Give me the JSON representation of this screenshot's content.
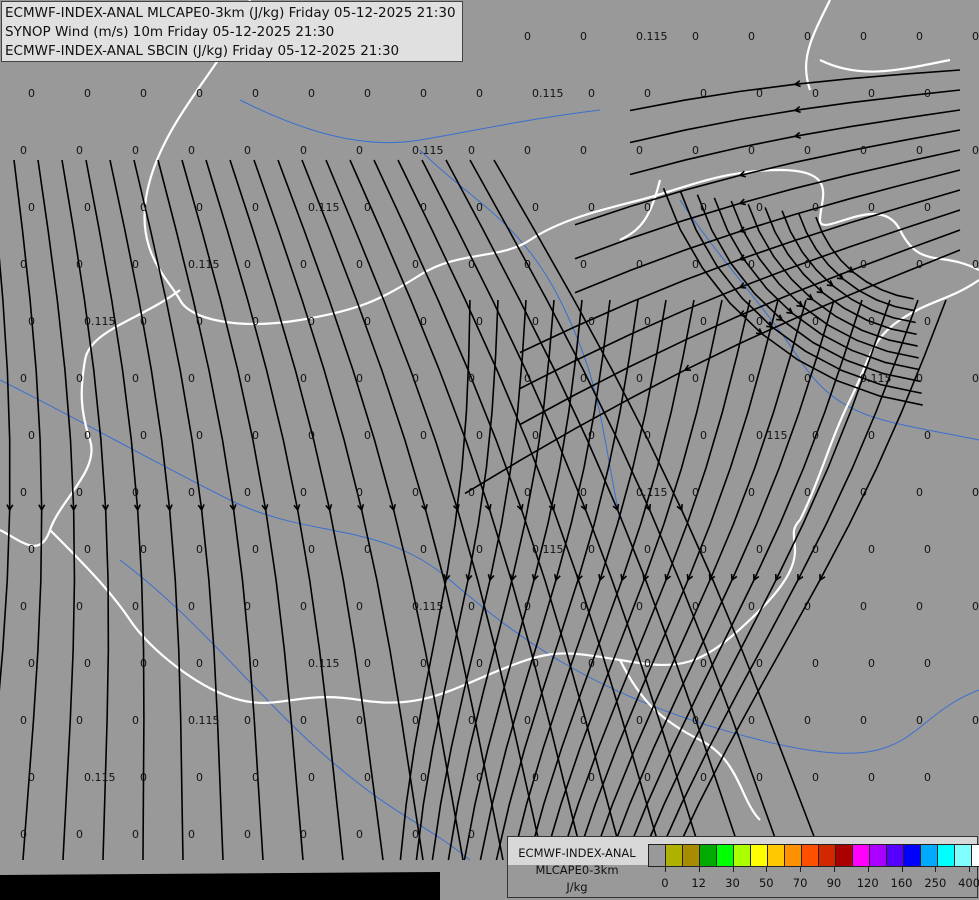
{
  "header": {
    "lines": [
      "ECMWF-INDEX-ANAL MLCAPE0-3km (J/kg) Friday 05-12-2025 21:30",
      "SYNOP Wind (m/s) 10m Friday 05-12-2025 21:30",
      "ECMWF-INDEX-ANAL SBCIN (J/kg) Friday 05-12-2025 21:30"
    ]
  },
  "map": {
    "background": "#999999",
    "border_color": "#ffffff",
    "river_color": "#3a6fd0",
    "streamline_color": "#000000",
    "cin_values": [
      "0",
      "0",
      "0.115",
      "0",
      "0",
      "0",
      "0",
      "0",
      "0",
      "0",
      "0",
      "0",
      "0",
      "0",
      "0",
      "0"
    ]
  },
  "legend": {
    "title_lines": [
      "ECMWF-INDEX-ANAL",
      "MLCAPE0-3km",
      "J/kg"
    ],
    "colors": [
      "#999999",
      "#b0b000",
      "#a88c00",
      "#00aa00",
      "#00ff00",
      "#aaff00",
      "#ffff00",
      "#ffc800",
      "#ff9000",
      "#ff5000",
      "#d22800",
      "#aa0000",
      "#ff00ff",
      "#aa00ff",
      "#5500ff",
      "#0000ff",
      "#00aaff",
      "#00ffff",
      "#80ffff",
      "#ffffff"
    ],
    "ticks": [
      "0",
      "12",
      "30",
      "50",
      "70",
      "90",
      "120",
      "160",
      "250",
      "400"
    ]
  }
}
